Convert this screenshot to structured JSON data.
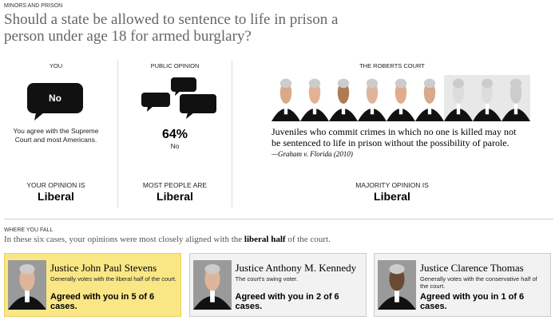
{
  "header": {
    "kicker": "MINORS AND PRISON",
    "title": "Should a state be allowed to sentence to life in prison a person under age 18 for armed burglary?"
  },
  "columns": {
    "you": {
      "label": "YOU",
      "answer": "No",
      "note": "You agree with the Supreme Court and most Americans.",
      "opinion_label": "YOUR OPINION IS",
      "opinion": "Liberal"
    },
    "public": {
      "label": "PUBLIC OPINION",
      "percent": "64%",
      "answer": "No",
      "opinion_label": "MOST PEOPLE ARE",
      "opinion": "Liberal"
    },
    "court": {
      "label": "THE ROBERTS COURT",
      "quote": "Juveniles who commit crimes in which no one is killed may not be sentenced to life in prison without the possibility of parole.",
      "citation": "—Graham v. Florida (2010)",
      "opinion_label": "MAJORITY OPINION IS",
      "opinion": "Liberal"
    }
  },
  "where_you_fall": {
    "label": "WHERE YOU FALL",
    "intro": "In these six cases, your opinions were most closely aligned with the",
    "emphasis": "liberal half",
    "outro": "of the court.",
    "cards": [
      {
        "name": "Justice John Paul Stevens",
        "description": "Generally votes with the liberal half of the court.",
        "agreement": "Agreed with you in 5 of 6 cases."
      },
      {
        "name": "Justice Anthony M. Kennedy",
        "description": "The court's swing voter.",
        "agreement": "Agreed with you in 2 of 6 cases."
      },
      {
        "name": "Justice Clarence Thomas",
        "description": "Generally votes with the conservative half of the court.",
        "agreement": "Agreed with you in 1 of 6 cases."
      }
    ]
  }
}
